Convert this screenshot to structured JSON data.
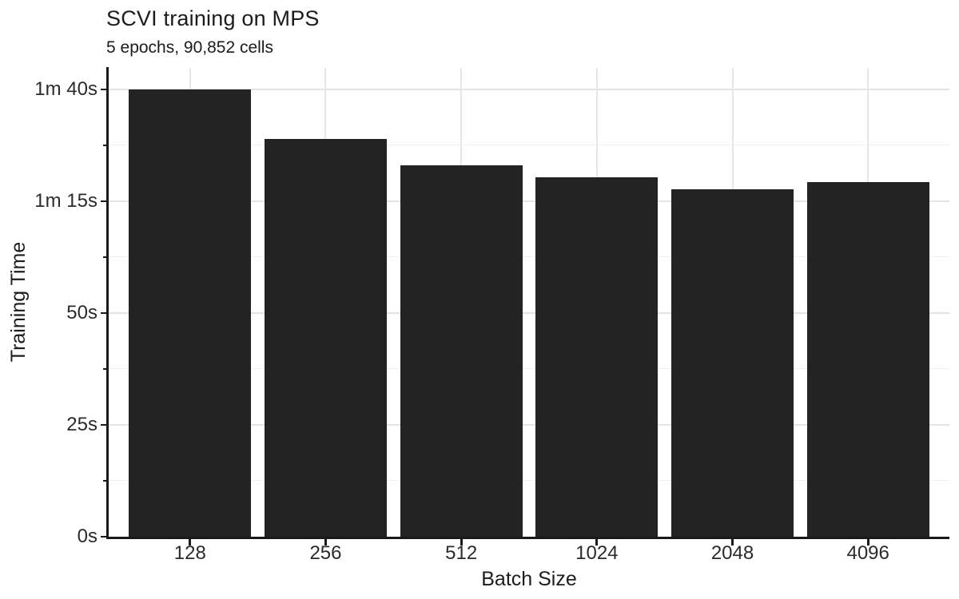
{
  "chart_data": {
    "type": "bar",
    "title": "SCVI training on MPS",
    "subtitle": "5 epochs, 90,852 cells",
    "xlabel": "Batch Size",
    "ylabel": "Training Time",
    "categories": [
      "128",
      "256",
      "512",
      "1024",
      "2048",
      "4096"
    ],
    "series": [
      {
        "name": "Training Time (seconds)",
        "values": [
          100,
          89,
          83,
          80.4,
          77.7,
          79.2
        ]
      }
    ],
    "value_unit": "seconds",
    "y_ticks": [
      {
        "value": 0,
        "label": "0s"
      },
      {
        "value": 25,
        "label": "25s"
      },
      {
        "value": 50,
        "label": "50s"
      },
      {
        "value": 75,
        "label": "1m 15s"
      },
      {
        "value": 100,
        "label": "1m 40s"
      }
    ],
    "y_minor_ticks": [
      12.5,
      37.5,
      62.5,
      87.5
    ],
    "ylim": [
      0,
      104.8
    ],
    "bar_color": "#232323",
    "axis_color": "#1a1a1a",
    "grid": {
      "on": true,
      "major_color": "#e4e4e4",
      "minor_color": "#f1f1f1",
      "vertical_at_categories": true
    },
    "legend_position": "none",
    "background_color": "#ffffff"
  }
}
